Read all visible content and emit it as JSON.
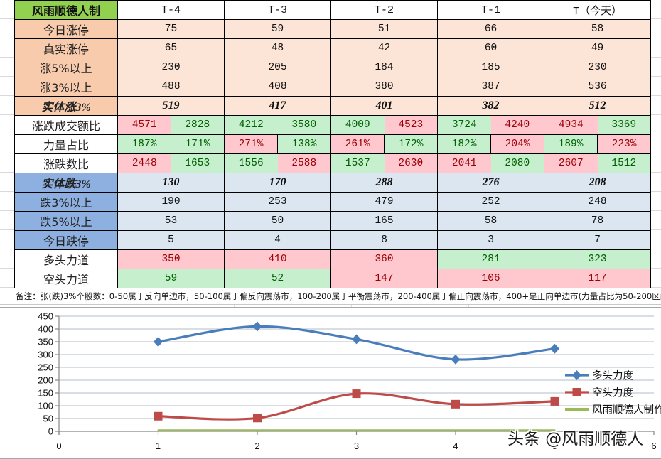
{
  "table": {
    "corner_label": "风雨顺德人制",
    "columns": [
      "T-4",
      "T-3",
      "T-2",
      "T-1",
      "T（今天）"
    ],
    "rows": [
      {
        "label": "今日涨停",
        "values": [
          "75",
          "59",
          "51",
          "66",
          "58"
        ]
      },
      {
        "label": "真实涨停",
        "values": [
          "65",
          "48",
          "42",
          "60",
          "49"
        ]
      },
      {
        "label": "涨5%以上",
        "values": [
          "230",
          "205",
          "184",
          "185",
          "230"
        ]
      },
      {
        "label": "涨3%以上",
        "values": [
          "488",
          "408",
          "380",
          "387",
          "536"
        ]
      },
      {
        "label": "实体涨3%",
        "values": [
          "519",
          "417",
          "401",
          "382",
          "512"
        ],
        "value_color": "#1C9A43"
      },
      {
        "label": "涨跌成交额比",
        "pairs": [
          [
            {
              "v": "4571",
              "tone": "red"
            },
            {
              "v": "2828",
              "tone": "green"
            }
          ],
          [
            {
              "v": "4212",
              "tone": "green"
            },
            {
              "v": "3580",
              "tone": "green"
            }
          ],
          [
            {
              "v": "4009",
              "tone": "green"
            },
            {
              "v": "4523",
              "tone": "red"
            }
          ],
          [
            {
              "v": "3724",
              "tone": "green"
            },
            {
              "v": "4240",
              "tone": "red"
            }
          ],
          [
            {
              "v": "4934",
              "tone": "red"
            },
            {
              "v": "3369",
              "tone": "green"
            }
          ]
        ]
      },
      {
        "label": "力量占比",
        "pairs": [
          [
            {
              "v": "187%",
              "tone": "green"
            },
            {
              "v": "171%",
              "tone": "green"
            }
          ],
          [
            {
              "v": "271%",
              "tone": "red"
            },
            {
              "v": "138%",
              "tone": "green"
            }
          ],
          [
            {
              "v": "261%",
              "tone": "red"
            },
            {
              "v": "172%",
              "tone": "green"
            }
          ],
          [
            {
              "v": "182%",
              "tone": "green"
            },
            {
              "v": "204%",
              "tone": "red"
            }
          ],
          [
            {
              "v": "189%",
              "tone": "green"
            },
            {
              "v": "223%",
              "tone": "red"
            }
          ]
        ]
      },
      {
        "label": "涨跌数比",
        "pairs": [
          [
            {
              "v": "2448",
              "tone": "red"
            },
            {
              "v": "1653",
              "tone": "green"
            }
          ],
          [
            {
              "v": "1556",
              "tone": "green"
            },
            {
              "v": "2588",
              "tone": "red"
            }
          ],
          [
            {
              "v": "1537",
              "tone": "green"
            },
            {
              "v": "2630",
              "tone": "red"
            }
          ],
          [
            {
              "v": "2041",
              "tone": "red"
            },
            {
              "v": "2080",
              "tone": "green"
            }
          ],
          [
            {
              "v": "2607",
              "tone": "red"
            },
            {
              "v": "1512",
              "tone": "green"
            }
          ]
        ]
      },
      {
        "label": "实体跌3%",
        "values": [
          "130",
          "170",
          "288",
          "276",
          "208"
        ],
        "value_color": "#E3061E"
      },
      {
        "label": "跌3%以上",
        "values": [
          "190",
          "253",
          "479",
          "252",
          "248"
        ]
      },
      {
        "label": "跌5%以上",
        "values": [
          "53",
          "50",
          "165",
          "58",
          "78"
        ]
      },
      {
        "label": "今日跌停",
        "values": [
          "5",
          "4",
          "8",
          "3",
          "7"
        ]
      },
      {
        "label": "多头力道",
        "cells": [
          {
            "v": "350",
            "tone": "red"
          },
          {
            "v": "410",
            "tone": "red"
          },
          {
            "v": "360",
            "tone": "red"
          },
          {
            "v": "281",
            "tone": "green"
          },
          {
            "v": "323",
            "tone": "green"
          }
        ]
      },
      {
        "label": "空头力道",
        "cells": [
          {
            "v": "59",
            "tone": "green"
          },
          {
            "v": "52",
            "tone": "green"
          },
          {
            "v": "147",
            "tone": "red"
          },
          {
            "v": "106",
            "tone": "red"
          },
          {
            "v": "117",
            "tone": "red"
          }
        ]
      }
    ],
    "colors": {
      "header_green": "#92D050",
      "peach_label": "#F8CBAD",
      "peach_cell": "#FCE4D6",
      "blue_label": "#8DB0E0",
      "blue_cell": "#DCE6F1",
      "bad_fill": "#FFC7CE",
      "bad_text": "#9C0006",
      "good_fill": "#C6EFCE",
      "good_text": "#006100"
    }
  },
  "note": "备注：张(跌)3%个股数：0-50属于反向单边市，50-100属于偏反向震荡市，100-200属于平衡震荡市，200-400属于偏正向震荡市，400+是正向单边市(力量占比为50-200区间",
  "watermark": "头条 @风雨顺德人",
  "chart_data": {
    "type": "line",
    "title": "",
    "xlabel": "",
    "ylabel": "",
    "smooth": true,
    "x": [
      1,
      2,
      3,
      4,
      5
    ],
    "series": [
      {
        "name": "多头力度",
        "values": [
          350,
          410,
          360,
          281,
          323
        ],
        "color": "#4A7EBB",
        "marker": "diamond"
      },
      {
        "name": "空头力度",
        "values": [
          59,
          52,
          147,
          106,
          117
        ],
        "color": "#BE4B48",
        "marker": "square"
      },
      {
        "name": "风雨顺德人制作",
        "values": [
          5,
          5,
          5,
          5,
          5
        ],
        "color": "#9BBB59",
        "marker": "none"
      }
    ],
    "xlim": [
      0,
      6
    ],
    "ylim": [
      0,
      450
    ],
    "xticks": [
      0,
      1,
      2,
      3,
      4,
      5,
      6
    ],
    "yticks": [
      0,
      50,
      100,
      150,
      200,
      250,
      300,
      350,
      400,
      450
    ],
    "grid": true,
    "legend_position": "right"
  }
}
